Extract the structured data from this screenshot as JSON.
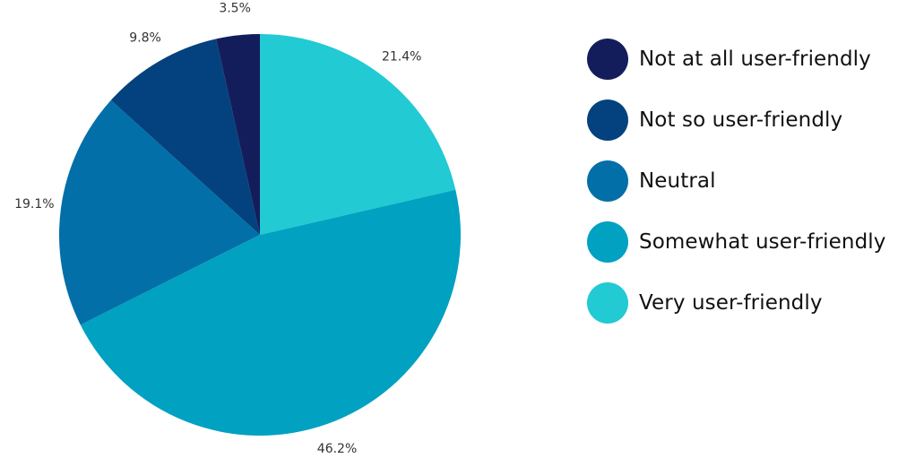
{
  "chart_data": {
    "type": "pie",
    "title": "",
    "slices": [
      {
        "label": "Not at all user-friendly",
        "value": 3.5,
        "value_label": "3.5%",
        "color": "#141d5c"
      },
      {
        "label": "Not so user-friendly",
        "value": 9.8,
        "value_label": "9.8%",
        "color": "#03427f"
      },
      {
        "label": "Neutral",
        "value": 19.1,
        "value_label": "19.1%",
        "color": "#036fa8"
      },
      {
        "label": "Somewhat user-friendly",
        "value": 46.2,
        "value_label": "46.2%",
        "color": "#00a1c1"
      },
      {
        "label": "Very user-friendly",
        "value": 21.4,
        "value_label": "21.4%",
        "color": "#22cad3"
      }
    ],
    "direction": "clockwise",
    "start_angle": "12 o'clock",
    "legend_placement": "right"
  }
}
